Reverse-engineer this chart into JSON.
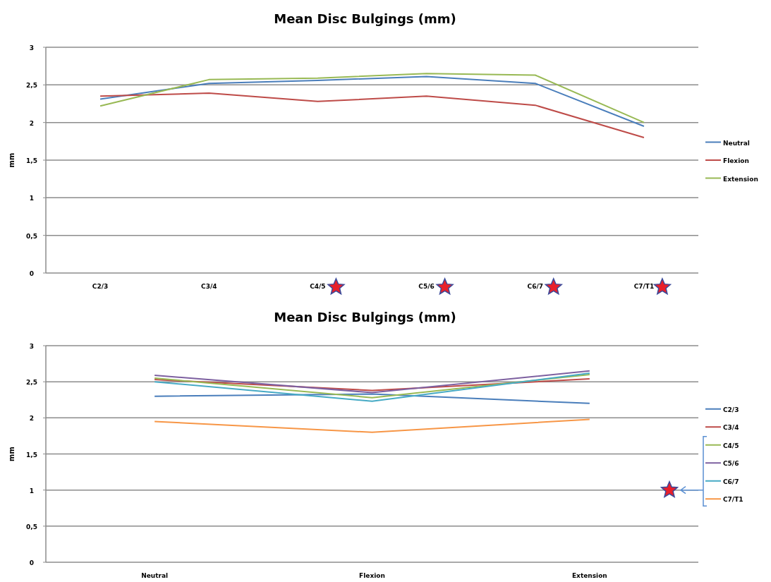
{
  "chart_data": [
    {
      "type": "line",
      "title": "Mean Disc Bulgings (mm)",
      "ylabel": "mm",
      "categories": [
        "C2/3",
        "C3/4",
        "C4/5",
        "C5/6",
        "C6/7",
        "C7/T1"
      ],
      "series": [
        {
          "name": "Neutral",
          "color": "#4a7ebb",
          "values": [
            2.31,
            2.52,
            2.56,
            2.61,
            2.52,
            1.95
          ]
        },
        {
          "name": "Flexion",
          "color": "#be4b48",
          "values": [
            2.35,
            2.39,
            2.28,
            2.35,
            2.23,
            1.8
          ]
        },
        {
          "name": "Extension",
          "color": "#98b954",
          "values": [
            2.22,
            2.57,
            2.59,
            2.65,
            2.63,
            2.0
          ]
        }
      ],
      "ylim": [
        0,
        3
      ],
      "yticks": [
        0,
        {
          "value": 0.5,
          "label": "0,5"
        },
        1,
        {
          "value": 1.5,
          "label": "1,5"
        },
        2,
        {
          "value": 2.5,
          "label": "2,5"
        },
        3
      ],
      "grid": "y",
      "legend": "right",
      "marker": "none"
    },
    {
      "type": "line",
      "title": "Mean Disc Bulgings (mm)",
      "ylabel": "mm",
      "categories": [
        "Neutral",
        "Flexion",
        "Extension"
      ],
      "series": [
        {
          "name": "C2/3",
          "color": "#4a7ebb",
          "values": [
            2.3,
            2.33,
            2.2
          ]
        },
        {
          "name": "C3/4",
          "color": "#be4b48",
          "values": [
            2.53,
            2.38,
            2.54
          ]
        },
        {
          "name": "C4/5",
          "color": "#98b954",
          "values": [
            2.55,
            2.28,
            2.6
          ]
        },
        {
          "name": "C5/6",
          "color": "#7d60a0",
          "values": [
            2.59,
            2.35,
            2.65
          ]
        },
        {
          "name": "C6/7",
          "color": "#46aac5",
          "values": [
            2.5,
            2.23,
            2.62
          ]
        },
        {
          "name": "C7/T1",
          "color": "#f79646",
          "values": [
            1.95,
            1.8,
            1.98
          ]
        }
      ],
      "ylim": [
        0,
        3
      ],
      "yticks": [
        0,
        {
          "value": 0.5,
          "label": "0,5"
        },
        1,
        {
          "value": 1.5,
          "label": "1,5"
        },
        2,
        {
          "value": 2.5,
          "label": "2,5"
        },
        3
      ],
      "grid": "y",
      "legend": "right",
      "marker": "none"
    }
  ]
}
